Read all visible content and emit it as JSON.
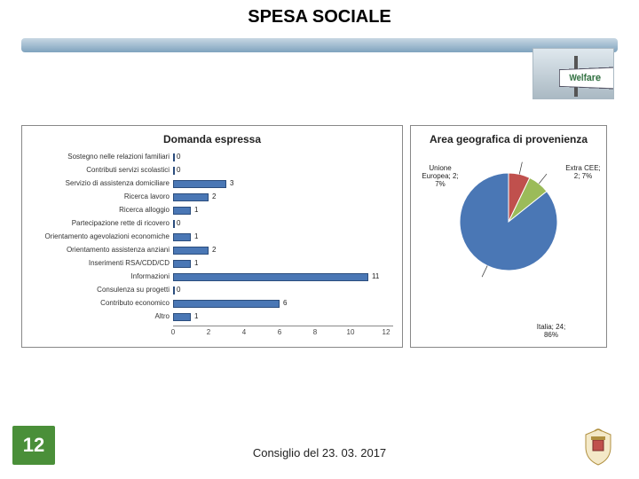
{
  "page_title": "SPESA SOCIALE",
  "page_number": "12",
  "footer": "Consiglio del 23. 03. 2017",
  "welfare_label": "Welfare",
  "bar_chart": {
    "type": "bar-horizontal",
    "title": "Domanda espressa",
    "bar_color": "#4a77b5",
    "bar_border": "#2b4d7d",
    "xlim": [
      0,
      12
    ],
    "xtick_step": 2,
    "xticks": [
      "0",
      "2",
      "4",
      "6",
      "8",
      "10",
      "12"
    ],
    "label_fontsize": 8,
    "title_fontsize": 12,
    "items": [
      {
        "label": "Sostegno nelle relazioni familiari",
        "value": 0
      },
      {
        "label": "Contributi servizi scolastici",
        "value": 0
      },
      {
        "label": "Servizio di assistenza domiciliare",
        "value": 3
      },
      {
        "label": "Ricerca lavoro",
        "value": 2
      },
      {
        "label": "Ricerca alloggio",
        "value": 1
      },
      {
        "label": "Partecipazione rette di ricovero",
        "value": 0
      },
      {
        "label": "Orientamento agevolazioni economiche",
        "value": 1
      },
      {
        "label": "Orientamento assistenza anziani",
        "value": 2
      },
      {
        "label": "Inserimenti RSA/CDD/CD",
        "value": 1
      },
      {
        "label": "Informazioni",
        "value": 11
      },
      {
        "label": "Consulenza su progetti",
        "value": 0
      },
      {
        "label": "Contributo economico",
        "value": 6
      },
      {
        "label": "Altro",
        "value": 1
      }
    ]
  },
  "pie_chart": {
    "type": "pie",
    "title": "Area geografica di provenienza",
    "background_color": "#ffffff",
    "label_fontsize": 8,
    "slices": [
      {
        "label": "Unione Europea; 2; 7%",
        "value": 2,
        "pct": 7,
        "color": "#c0504d"
      },
      {
        "label": "Extra CEE; 2; 7%",
        "value": 2,
        "pct": 7,
        "color": "#9bbb59"
      },
      {
        "label": "Italia; 24; 86%",
        "value": 24,
        "pct": 86,
        "color": "#4a77b5"
      }
    ]
  },
  "colors": {
    "green_accent": "#4a8f39",
    "background": "#ffffff",
    "axis": "#888888"
  }
}
